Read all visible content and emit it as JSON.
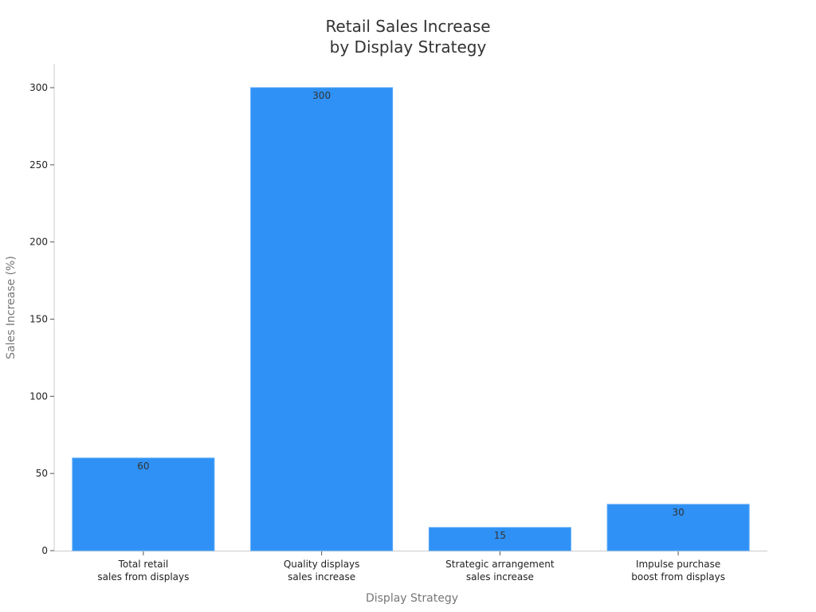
{
  "chart_data": {
    "type": "bar",
    "title": "Retail Sales Increase by Display Strategy",
    "title_lines": [
      "Retail Sales Increase",
      "by Display Strategy"
    ],
    "xlabel": "Display Strategy",
    "ylabel": "Sales Increase (%)",
    "categories": [
      "Total retail sales from displays",
      "Quality displays sales increase",
      "Strategic arrangement sales increase",
      "Impulse purchase boost from displays"
    ],
    "category_lines": [
      [
        "Total retail",
        "sales from displays"
      ],
      [
        "Quality displays",
        "sales increase"
      ],
      [
        "Strategic arrangement",
        "sales increase"
      ],
      [
        "Impulse purchase",
        "boost from displays"
      ]
    ],
    "values": [
      60,
      300,
      15,
      30
    ],
    "data_labels": [
      "60",
      "300",
      "15",
      "30"
    ],
    "yticks": [
      0,
      50,
      100,
      150,
      200,
      250,
      300
    ],
    "ylim": [
      0,
      300
    ],
    "grid": false,
    "legend": null,
    "colors": {
      "bar": "#2f91f5",
      "bar_edge": "#5aa8f7",
      "axis": "#cccccc",
      "tick_text": "#222222",
      "label_text": "#777777",
      "data_label_text": "#333333",
      "title_text": "#333333"
    }
  }
}
